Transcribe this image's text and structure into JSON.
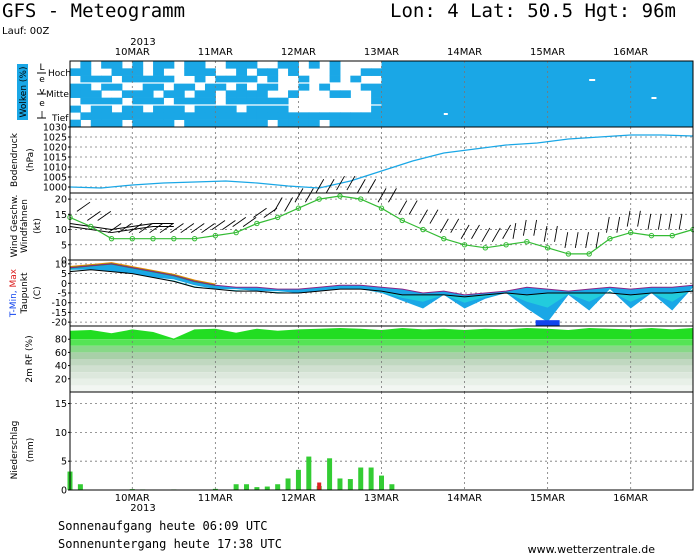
{
  "header": {
    "title": "GFS - Meteogramm",
    "location": "Lon: 4 Lat: 50.5 Hgt: 96m",
    "run": "Lauf: 00Z"
  },
  "footer": {
    "sunrise": "Sonnenaufgang heute 06:09 UTC",
    "sunset": "Sonnenuntergang heute 17:38 UTC",
    "website": "www.wetterzentrale.de"
  },
  "colors": {
    "cloud": "#1aa7e6",
    "pressure_line": "#1aa7e6",
    "wind_line": "#33bb33",
    "rh_green": "#22dd22",
    "precip_bar": "#33cc33",
    "tmin_blue": "#1144ee",
    "tmax_red": "#dd2222"
  },
  "chart_data": {
    "time_axis": {
      "year": "2013",
      "dates": [
        "10MAR",
        "11MAR",
        "12MAR",
        "13MAR",
        "14MAR",
        "15MAR",
        "16MAR"
      ],
      "hours_range": [
        -18,
        162
      ],
      "date_hours": [
        0,
        24,
        48,
        72,
        96,
        120,
        144
      ]
    },
    "clouds": {
      "type": "heatmap",
      "ylabel": "Wolken (%)",
      "side_label": "L e v e l",
      "levels": [
        "Hoch",
        "Mittel",
        "Tief"
      ],
      "overcast_from_hour": 72
    },
    "pressure": {
      "type": "line",
      "ylabel": "Bodendruck",
      "unit": "(hPa)",
      "ylim": [
        997,
        1030
      ],
      "yticks": [
        1000,
        1005,
        1010,
        1015,
        1020,
        1025,
        1030
      ],
      "x": [
        -18,
        -9,
        0,
        9,
        18,
        27,
        36,
        45,
        54,
        63,
        72,
        81,
        90,
        99,
        108,
        117,
        126,
        135,
        144,
        153,
        162
      ],
      "values": [
        1000,
        999.5,
        1001,
        1002,
        1002.5,
        1003,
        1002,
        1000.5,
        999.5,
        1003,
        1008,
        1013,
        1017,
        1019,
        1021,
        1022,
        1024,
        1025,
        1026,
        1026,
        1025.5
      ]
    },
    "wind": {
      "type": "line",
      "ylabel": "Windfahnen",
      "ylabel2": "Wind Geschw.",
      "unit": "(kt)",
      "ylim": [
        0,
        22
      ],
      "yticks": [
        0,
        5,
        10,
        15,
        20
      ],
      "x": [
        -18,
        -12,
        -6,
        0,
        6,
        12,
        18,
        24,
        30,
        36,
        42,
        48,
        54,
        60,
        66,
        72,
        78,
        84,
        90,
        96,
        102,
        108,
        114,
        120,
        126,
        132,
        138,
        144,
        150,
        156,
        162
      ],
      "values": [
        14,
        11,
        7,
        7,
        7,
        7,
        7,
        8,
        9,
        12,
        14,
        17,
        20,
        21,
        20,
        17,
        13,
        10,
        7,
        5,
        4,
        5,
        6,
        4,
        2,
        2,
        7,
        9,
        8,
        8,
        10
      ]
    },
    "temperature": {
      "type": "area",
      "ylabel": "Taupunkt",
      "ylabel2": "T-Min, Max",
      "unit": "(C)",
      "ylim": [
        -22,
        12
      ],
      "yticks": [
        10,
        5,
        0,
        -5,
        -10,
        -15,
        -20
      ],
      "x": [
        -18,
        -12,
        -6,
        0,
        6,
        12,
        18,
        24,
        30,
        36,
        42,
        48,
        54,
        60,
        66,
        72,
        78,
        84,
        90,
        96,
        102,
        108,
        114,
        120,
        126,
        132,
        138,
        144,
        150,
        156,
        162
      ],
      "tmax": [
        8,
        9,
        10,
        8,
        6,
        4,
        1,
        -1,
        -2,
        -2,
        -3,
        -3,
        -2,
        -1,
        -1,
        -2,
        -3,
        -5,
        -4,
        -6,
        -5,
        -4,
        -2,
        -3,
        -4,
        -3,
        -2,
        -3,
        -2,
        -2,
        -1
      ],
      "tmin": [
        7,
        7,
        6,
        5,
        3,
        2,
        -1,
        -3,
        -3,
        -4,
        -4,
        -5,
        -4,
        -3,
        -3,
        -5,
        -9,
        -13,
        -6,
        -13,
        -8,
        -5,
        -13,
        -20,
        -6,
        -14,
        -3,
        -13,
        -5,
        -14,
        -2
      ],
      "dewpoint": [
        6,
        7,
        6,
        5,
        3,
        1,
        -2,
        -3,
        -4,
        -4,
        -5,
        -5,
        -4,
        -3,
        -3,
        -4,
        -6,
        -6,
        -6,
        -7,
        -6,
        -5,
        -6,
        -5,
        -5,
        -5,
        -5,
        -6,
        -5,
        -5,
        -4
      ]
    },
    "humidity": {
      "type": "area",
      "ylabel": "2m RF (%)",
      "ylim": [
        0,
        100
      ],
      "yticks": [
        20,
        40,
        60,
        80
      ],
      "x": [
        -18,
        -12,
        -6,
        0,
        6,
        12,
        18,
        24,
        30,
        36,
        42,
        48,
        54,
        60,
        66,
        72,
        78,
        84,
        90,
        96,
        102,
        108,
        114,
        120,
        126,
        132,
        138,
        144,
        150,
        156,
        162
      ],
      "values": [
        92,
        93,
        88,
        94,
        90,
        80,
        94,
        95,
        89,
        95,
        92,
        94,
        95,
        96,
        95,
        93,
        96,
        94,
        95,
        93,
        95,
        94,
        96,
        95,
        93,
        96,
        95,
        94,
        96,
        94,
        96
      ]
    },
    "precipitation": {
      "type": "bar",
      "ylabel": "Niederschlag",
      "unit": "(mm)",
      "ylim": [
        0,
        17
      ],
      "yticks": [
        0,
        5,
        10,
        15
      ],
      "x": [
        -18,
        -15,
        0,
        3,
        12,
        24,
        30,
        33,
        36,
        39,
        42,
        45,
        48,
        51,
        54,
        57,
        60,
        63,
        66,
        69,
        72,
        75
      ],
      "values": [
        3.2,
        1,
        0.15,
        0.1,
        0.1,
        0.2,
        1,
        1,
        0.5,
        0.6,
        1,
        2,
        3.5,
        5.8,
        0.7,
        5.5,
        2,
        1.9,
        3.9,
        3.9,
        2.5,
        1
      ],
      "red_marker_x": 54
    }
  }
}
